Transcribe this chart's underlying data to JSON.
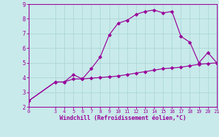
{
  "xlabel": "Windchill (Refroidissement éolien,°C)",
  "x_main": [
    0,
    3,
    4,
    5,
    6,
    7,
    8,
    9,
    10,
    11,
    12,
    13,
    14,
    15,
    16,
    17,
    18,
    19,
    20,
    21
  ],
  "y_main": [
    2.4,
    3.7,
    3.7,
    4.2,
    3.9,
    4.6,
    5.4,
    6.9,
    7.7,
    7.9,
    8.3,
    8.5,
    8.6,
    8.4,
    8.5,
    6.8,
    6.4,
    5.0,
    5.7,
    5.0
  ],
  "x_second": [
    0,
    3,
    4,
    5,
    6,
    7,
    8,
    9,
    10,
    11,
    12,
    13,
    14,
    15,
    16,
    17,
    18,
    19,
    20,
    21
  ],
  "y_second": [
    2.4,
    3.7,
    3.7,
    3.9,
    3.9,
    3.95,
    4.0,
    4.05,
    4.1,
    4.2,
    4.3,
    4.4,
    4.5,
    4.6,
    4.65,
    4.7,
    4.8,
    4.9,
    4.95,
    5.0
  ],
  "line_color": "#990099",
  "bg_color": "#c8eaea",
  "grid_color": "#b0d8d8",
  "xlim": [
    0,
    21
  ],
  "ylim": [
    2,
    9
  ],
  "xticks": [
    0,
    3,
    4,
    5,
    6,
    7,
    8,
    9,
    10,
    11,
    12,
    13,
    14,
    15,
    16,
    17,
    18,
    19,
    20,
    21
  ],
  "yticks": [
    2,
    3,
    4,
    5,
    6,
    7,
    8,
    9
  ],
  "marker": "D",
  "markersize": 2.5,
  "linewidth": 0.9
}
